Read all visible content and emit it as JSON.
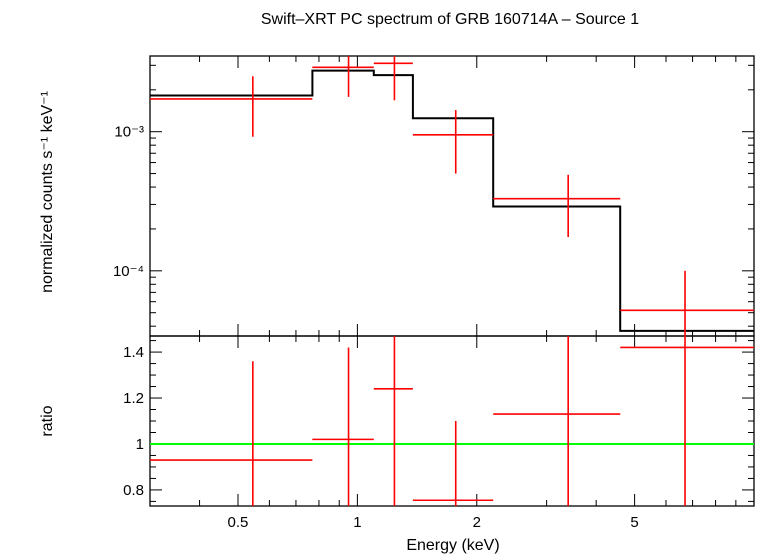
{
  "chart_data": [
    {
      "type": "line",
      "panel": "top",
      "title": "Swift–XRT PC spectrum of GRB 160714A – Source 1",
      "ylabel": "normalized counts s⁻¹ keV⁻¹",
      "xscale": "log",
      "yscale": "log",
      "xlim": [
        0.3,
        10
      ],
      "ylim": [
        3.4e-05,
        0.0035
      ],
      "y_tick_labels": [
        {
          "value": 0.001,
          "label": "10⁻³"
        },
        {
          "value": 0.0001,
          "label": "10⁻⁴"
        }
      ],
      "series": [
        {
          "color": "#ff0000",
          "points": [
            {
              "x": 0.545,
              "xlo": 0.3,
              "xhi": 0.77,
              "y": 0.00172,
              "ylo": 0.00092,
              "yhi": 0.0025
            },
            {
              "x": 0.95,
              "xlo": 0.77,
              "xhi": 1.1,
              "y": 0.0029,
              "ylo": 0.00178,
              "yhi": 0.0035
            },
            {
              "x": 1.24,
              "xlo": 1.1,
              "xhi": 1.38,
              "y": 0.0031,
              "ylo": 0.00168,
              "yhi": 0.0035
            },
            {
              "x": 1.77,
              "xlo": 1.38,
              "xhi": 2.2,
              "y": 0.00095,
              "ylo": 0.0005,
              "yhi": 0.00143
            },
            {
              "x": 3.4,
              "xlo": 2.2,
              "xhi": 4.6,
              "y": 0.00033,
              "ylo": 0.000175,
              "yhi": 0.00049
            },
            {
              "x": 6.7,
              "xlo": 4.6,
              "xhi": 10,
              "y": 5.2e-05,
              "ylo": 3.4e-05,
              "yhi": 0.0001
            }
          ]
        },
        {
          "color": "#000000",
          "step_edges": [
            0.3,
            0.77,
            1.1,
            1.38,
            2.2,
            4.6,
            10
          ],
          "step_values": [
            0.00182,
            0.00275,
            0.00255,
            0.00125,
            0.00029,
            3.7e-05
          ]
        }
      ]
    },
    {
      "type": "line",
      "panel": "bottom",
      "xlabel": "Energy (keV)",
      "ylabel": "ratio",
      "xscale": "log",
      "xlim": [
        0.3,
        10
      ],
      "ylim": [
        0.73,
        1.47
      ],
      "y_ticks": [
        0.8,
        1,
        1.2,
        1.4
      ],
      "y_tick_labels": [
        "0.8",
        "1",
        "1.2",
        "1.4"
      ],
      "x_ticks": [
        0.5,
        1,
        2,
        5
      ],
      "x_tick_labels": [
        "0.5",
        "1",
        "2",
        "5"
      ],
      "reference_line": {
        "y": 1,
        "color": "#00ff00"
      },
      "series": [
        {
          "color": "#ff0000",
          "points": [
            {
              "x": 0.545,
              "xlo": 0.3,
              "xhi": 0.77,
              "y": 0.93,
              "ylo": 0.73,
              "yhi": 1.36
            },
            {
              "x": 0.95,
              "xlo": 0.77,
              "xhi": 1.1,
              "y": 1.02,
              "ylo": 0.73,
              "yhi": 1.42
            },
            {
              "x": 1.24,
              "xlo": 1.1,
              "xhi": 1.38,
              "y": 1.24,
              "ylo": 0.73,
              "yhi": 1.47
            },
            {
              "x": 1.77,
              "xlo": 1.38,
              "xhi": 2.2,
              "y": 0.755,
              "ylo": 0.73,
              "yhi": 1.1
            },
            {
              "x": 3.4,
              "xlo": 2.2,
              "xhi": 4.6,
              "y": 1.13,
              "ylo": 0.73,
              "yhi": 1.47
            },
            {
              "x": 6.7,
              "xlo": 4.6,
              "xhi": 10,
              "y": 1.42,
              "ylo": 0.73,
              "yhi": 1.47
            }
          ]
        }
      ]
    }
  ]
}
